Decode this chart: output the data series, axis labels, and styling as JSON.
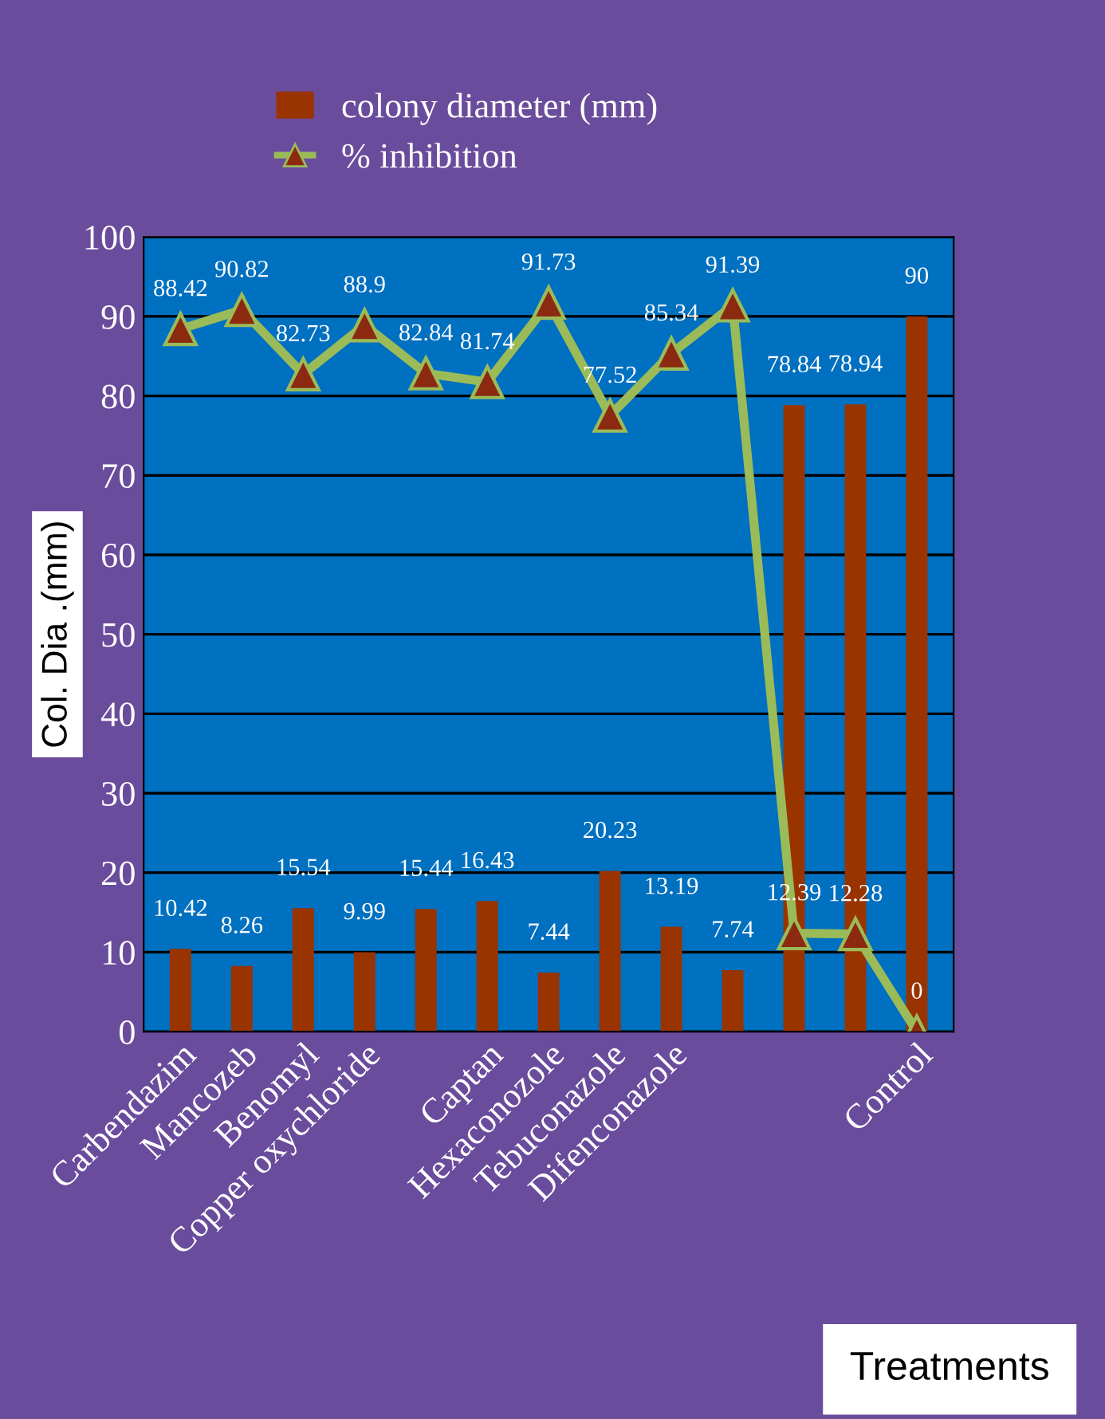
{
  "chart_data": {
    "type": "bar",
    "xlabel": "Treatments",
    "ylabel": "Col. Dia .(mm)",
    "categories": [
      "Carbendazim",
      "Mancozeb",
      "Benomyl",
      "Copper oxychloride",
      null,
      "Captan",
      "Hexaconozole",
      "Tebuconazole",
      "Difenconazole",
      null,
      null,
      null,
      "Control"
    ],
    "series": [
      {
        "name": "colony diameter (mm)",
        "color": "#993300",
        "values": [
          10.42,
          8.26,
          15.54,
          9.99,
          15.44,
          16.43,
          7.44,
          20.23,
          13.19,
          7.74,
          78.84,
          78.94,
          90
        ]
      },
      {
        "name": "% inhibition",
        "type": "line",
        "color": "#9bbb59",
        "marker": "triangle",
        "values": [
          88.42,
          90.82,
          82.73,
          88.9,
          82.84,
          81.74,
          91.73,
          77.52,
          85.34,
          91.39,
          12.39,
          12.28,
          0
        ]
      }
    ],
    "ylim": [
      0,
      100
    ],
    "yticks": [
      0,
      10,
      20,
      30,
      40,
      50,
      60,
      70,
      80,
      90,
      100
    ],
    "grid": "y",
    "legend": "top",
    "data_labels": true
  }
}
